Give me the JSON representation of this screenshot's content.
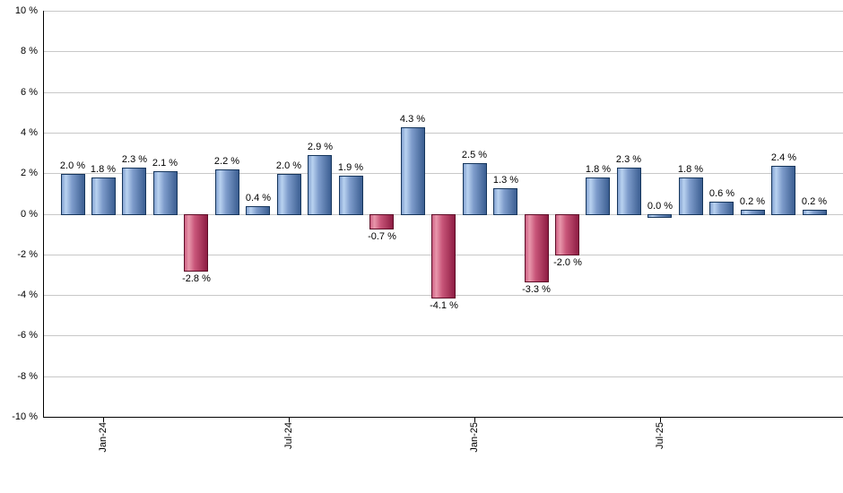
{
  "chart_data": {
    "type": "bar",
    "title": "",
    "xlabel": "",
    "ylabel": "",
    "unit_suffix": " %",
    "value_decimals": 1,
    "ylim": [
      -10,
      10
    ],
    "y_tick_step": 2,
    "grid": true,
    "legend": "none",
    "bar_count": 25,
    "values": [
      2.0,
      1.8,
      2.3,
      2.1,
      -2.8,
      2.2,
      0.4,
      2.0,
      2.9,
      1.9,
      -0.7,
      4.3,
      -4.1,
      2.5,
      1.3,
      -3.3,
      -2.0,
      1.8,
      2.3,
      0.0,
      1.8,
      0.6,
      0.2,
      2.4,
      0.2
    ],
    "y_ticks": [
      10,
      8,
      6,
      4,
      2,
      0,
      -2,
      -4,
      -6,
      -8,
      -10
    ],
    "x_ticks": [
      {
        "bar_index": 1,
        "label": "Jan-24"
      },
      {
        "bar_index": 7,
        "label": "Jul-24"
      },
      {
        "bar_index": 13,
        "label": "Jan-25"
      },
      {
        "bar_index": 19,
        "label": "Jul-25"
      }
    ],
    "colors": {
      "positive_bar": "#84A3D2",
      "positive_bar_light": "#B9D2F0",
      "positive_bar_mid": "#7E9CCB",
      "positive_bar_dark": "#3B5E91",
      "positive_border": "#16365C",
      "negative_bar": "#CE6184",
      "negative_bar_light": "#E897AB",
      "negative_bar_mid": "#C85579",
      "negative_bar_dark": "#8E1D43",
      "negative_border": "#5E0D27",
      "gridline": "#C8C8C8",
      "axis": "#000000",
      "label_text": "#000000",
      "background": "#FFFFFF"
    }
  }
}
